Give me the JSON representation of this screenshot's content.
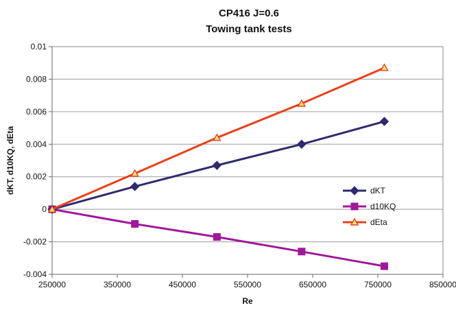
{
  "chart_data": {
    "type": "line",
    "title": "CP416 J=0.6",
    "subtitle": "Towing tank tests",
    "xlabel": "Re",
    "ylabel": "dKT, d10KQ, dEta",
    "xlim": [
      250000,
      850000
    ],
    "ylim": [
      -0.004,
      0.01
    ],
    "xticks": [
      "250000",
      "350000",
      "450000",
      "550000",
      "650000",
      "750000",
      "850000"
    ],
    "yticks": [
      "0.01",
      "0.008",
      "0.006",
      "0.004",
      "0.002",
      "0",
      "-0.002",
      "-0.004"
    ],
    "grid": "horizontal",
    "legend_position": "right",
    "series": [
      {
        "name": "dKT",
        "color": "#2e2a6e",
        "marker": "diamond",
        "x": [
          250000,
          377000,
          503000,
          633000,
          760000
        ],
        "y": [
          0.0,
          0.0014,
          0.0027,
          0.004,
          0.0054
        ]
      },
      {
        "name": "d10KQ",
        "color": "#a0189a",
        "marker": "square",
        "x": [
          250000,
          377000,
          503000,
          633000,
          760000
        ],
        "y": [
          0.0,
          -0.0009,
          -0.0017,
          -0.0026,
          -0.0035
        ]
      },
      {
        "name": "dEta",
        "color": "#e8401a",
        "marker": "triangle",
        "x": [
          250000,
          377000,
          503000,
          633000,
          760000
        ],
        "y": [
          0.0,
          0.0022,
          0.0044,
          0.0065,
          0.0087
        ]
      }
    ]
  }
}
